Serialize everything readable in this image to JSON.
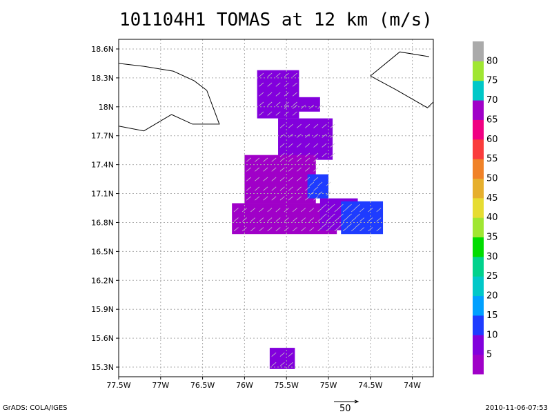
{
  "title": "101104H1 TOMAS at 12 km (m/s)",
  "footer": {
    "left": "GrADS: COLA/IGES",
    "right": "2010-11-06-07:53",
    "vector_ref": "50"
  },
  "axes": {
    "lon_ticks": [
      {
        "v": -77.5,
        "label": "77.5W"
      },
      {
        "v": -77,
        "label": "77W"
      },
      {
        "v": -76.5,
        "label": "76.5W"
      },
      {
        "v": -76,
        "label": "76W"
      },
      {
        "v": -75.5,
        "label": "75.5W"
      },
      {
        "v": -75,
        "label": "75W"
      },
      {
        "v": -74.5,
        "label": "74.5W"
      },
      {
        "v": -74,
        "label": "74W"
      }
    ],
    "lat_ticks": [
      {
        "v": 15.3,
        "label": "15.3N"
      },
      {
        "v": 15.6,
        "label": "15.6N"
      },
      {
        "v": 15.9,
        "label": "15.9N"
      },
      {
        "v": 16.2,
        "label": "16.2N"
      },
      {
        "v": 16.5,
        "label": "16.5N"
      },
      {
        "v": 16.8,
        "label": "16.8N"
      },
      {
        "v": 17.1,
        "label": "17.1N"
      },
      {
        "v": 17.4,
        "label": "17.4N"
      },
      {
        "v": 17.7,
        "label": "17.7N"
      },
      {
        "v": 18,
        "label": "18N"
      },
      {
        "v": 18.3,
        "label": "18.3N"
      },
      {
        "v": 18.6,
        "label": "18.6N"
      }
    ],
    "lon_range": [
      -77.5,
      -73.75
    ],
    "lat_range": [
      15.2,
      18.7
    ],
    "grid": true
  },
  "colorbar": {
    "colors": [
      "#a000c8",
      "#8200dc",
      "#1e3cff",
      "#00a0ff",
      "#00c8c8",
      "#00d28c",
      "#00dc00",
      "#a0e632",
      "#e6dc32",
      "#e6af2d",
      "#f08228",
      "#fa3c3c",
      "#f00082",
      "#a000c8",
      "#00c8c8",
      "#a0e632",
      "#aaaaaa"
    ],
    "labels": [
      "5",
      "10",
      "15",
      "20",
      "25",
      "30",
      "35",
      "40",
      "45",
      "50",
      "55",
      "60",
      "65",
      "70",
      "75",
      "80"
    ]
  },
  "coastlines": [
    [
      [
        -77.5,
        18.45
      ],
      [
        -77.2,
        18.42
      ],
      [
        -76.85,
        18.37
      ],
      [
        -76.6,
        18.27
      ],
      [
        -76.45,
        18.17
      ],
      [
        -76.3,
        17.82
      ],
      [
        -76.62,
        17.82
      ],
      [
        -76.87,
        17.92
      ],
      [
        -77.2,
        17.75
      ],
      [
        -77.5,
        17.8
      ]
    ],
    [
      [
        -74.5,
        18.32
      ],
      [
        -74.15,
        18.57
      ],
      [
        -73.8,
        18.52
      ]
    ],
    [
      [
        -74.5,
        18.32
      ],
      [
        -74.2,
        18.18
      ],
      [
        -73.82,
        17.99
      ],
      [
        -73.75,
        18.05
      ]
    ]
  ],
  "wind_field": {
    "ref_speed": 50,
    "cell_deg": 0.05,
    "regions": [
      {
        "lon": [
          -75.85,
          -75.35
        ],
        "lat": [
          17.88,
          18.38
        ],
        "color": "#8200dc"
      },
      {
        "lon": [
          -75.55,
          -75.1
        ],
        "lat": [
          17.95,
          18.1
        ],
        "color": "#8200dc"
      },
      {
        "lon": [
          -75.6,
          -74.95
        ],
        "lat": [
          17.45,
          17.88
        ],
        "color": "#8200dc"
      },
      {
        "lon": [
          -76.0,
          -75.15
        ],
        "lat": [
          17.0,
          17.5
        ],
        "color": "#a000c8"
      },
      {
        "lon": [
          -76.15,
          -74.9
        ],
        "lat": [
          16.68,
          17.0
        ],
        "color": "#a000c8"
      },
      {
        "lon": [
          -75.1,
          -74.65
        ],
        "lat": [
          16.72,
          17.05
        ],
        "color": "#8200dc"
      },
      {
        "lon": [
          -74.85,
          -74.35
        ],
        "lat": [
          16.68,
          17.02
        ],
        "color": "#1e3cff"
      },
      {
        "lon": [
          -75.25,
          -75.0
        ],
        "lat": [
          17.05,
          17.3
        ],
        "color": "#1e3cff"
      },
      {
        "lon": [
          -75.7,
          -75.4
        ],
        "lat": [
          15.28,
          15.5
        ],
        "color": "#8200dc"
      }
    ],
    "direction_deg": 40,
    "speed": 12
  }
}
